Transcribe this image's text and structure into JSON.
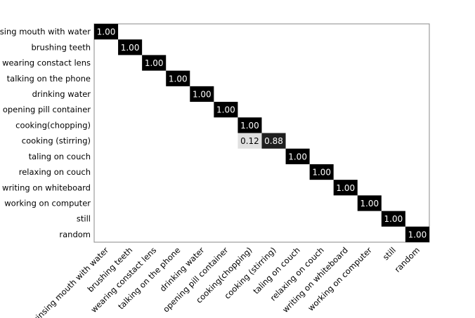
{
  "chart_data": {
    "type": "heatmap",
    "row_labels": [
      "rinsing mouth with water",
      "brushing teeth",
      "wearing constact lens",
      "talking on the phone",
      "drinking water",
      "opening pill container",
      "cooking(chopping)",
      "cooking (stirring)",
      "taling on couch",
      "relaxing on couch",
      "writing on whiteboard",
      "working on computer",
      "still",
      "random"
    ],
    "col_labels": [
      "rinsing mouth with water",
      "brushing teeth",
      "wearing constact lens",
      "talking on the phone",
      "drinking water",
      "opening pill container",
      "cooking(chopping)",
      "cooking (stirring)",
      "taling on couch",
      "relaxing on couch",
      "writing on whiteboard",
      "working on computer",
      "still",
      "random"
    ],
    "cells": [
      {
        "row": 0,
        "col": 0,
        "value": 1.0,
        "label": "1.00"
      },
      {
        "row": 1,
        "col": 1,
        "value": 1.0,
        "label": "1.00"
      },
      {
        "row": 2,
        "col": 2,
        "value": 1.0,
        "label": "1.00"
      },
      {
        "row": 3,
        "col": 3,
        "value": 1.0,
        "label": "1.00"
      },
      {
        "row": 4,
        "col": 4,
        "value": 1.0,
        "label": "1.00"
      },
      {
        "row": 5,
        "col": 5,
        "value": 1.0,
        "label": "1.00"
      },
      {
        "row": 6,
        "col": 6,
        "value": 1.0,
        "label": "1.00"
      },
      {
        "row": 7,
        "col": 6,
        "value": 0.12,
        "label": "0.12"
      },
      {
        "row": 7,
        "col": 7,
        "value": 0.88,
        "label": "0.88"
      },
      {
        "row": 8,
        "col": 8,
        "value": 1.0,
        "label": "1.00"
      },
      {
        "row": 9,
        "col": 9,
        "value": 1.0,
        "label": "1.00"
      },
      {
        "row": 10,
        "col": 10,
        "value": 1.0,
        "label": "1.00"
      },
      {
        "row": 11,
        "col": 11,
        "value": 1.0,
        "label": "1.00"
      },
      {
        "row": 12,
        "col": 12,
        "value": 1.0,
        "label": "1.00"
      },
      {
        "row": 13,
        "col": 13,
        "value": 1.0,
        "label": "1.00"
      }
    ],
    "colormap": "white-to-black",
    "value_range": [
      0,
      1
    ]
  }
}
